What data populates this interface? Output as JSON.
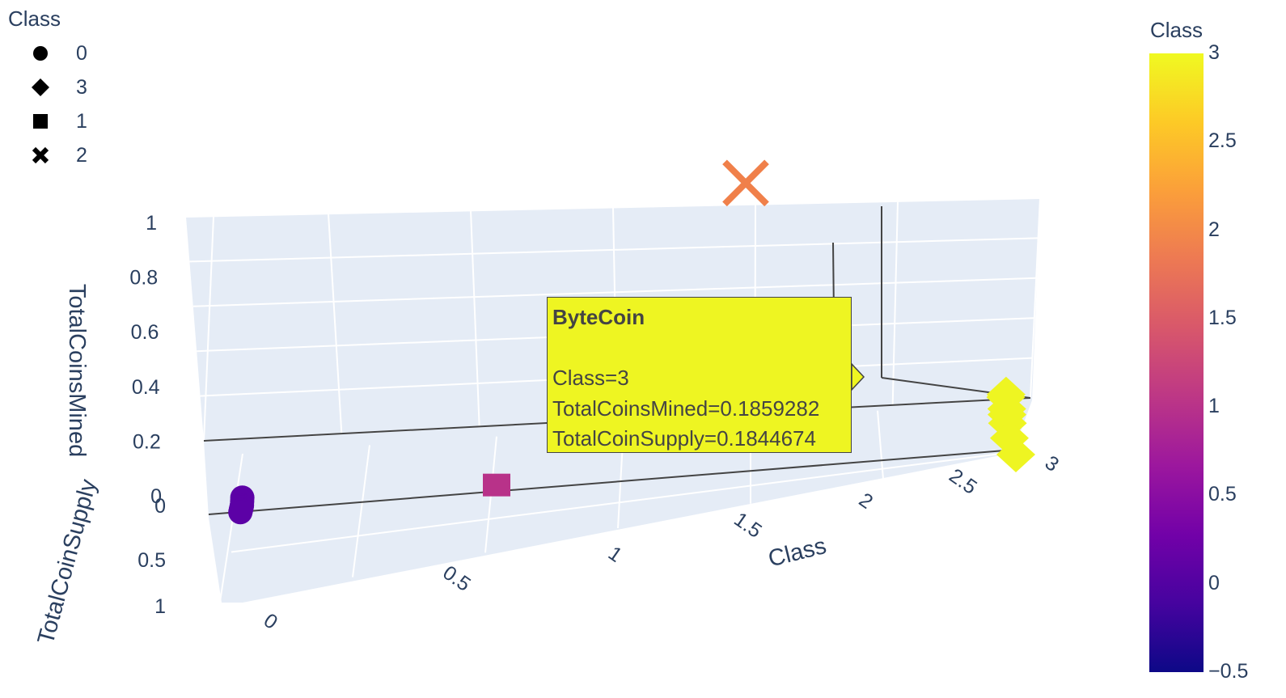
{
  "chart_data": {
    "type": "scatter3d",
    "legend": {
      "title": "Class",
      "items": [
        {
          "label": "0",
          "symbol": "circle"
        },
        {
          "label": "3",
          "symbol": "diamond"
        },
        {
          "label": "1",
          "symbol": "square"
        },
        {
          "label": "2",
          "symbol": "x"
        }
      ]
    },
    "colorbar": {
      "title": "Class",
      "ticks": [
        "3",
        "2.5",
        "2",
        "1.5",
        "1",
        "0.5",
        "0",
        "−0.5"
      ],
      "colors": [
        "#0d0887",
        "#46039f",
        "#7201a8",
        "#9c179e",
        "#bd3786",
        "#d8576b",
        "#ed7953",
        "#fb9f3a",
        "#fdca26",
        "#f0f921"
      ]
    },
    "axes": {
      "x": {
        "title": "Class",
        "ticks": [
          "0",
          "0.5",
          "1",
          "1.5",
          "2",
          "2.5",
          "3"
        ],
        "range": [
          0,
          3
        ]
      },
      "y": {
        "title": "TotalCoinSupply",
        "ticks": [
          "0",
          "0.5",
          "1"
        ],
        "range": [
          0,
          1
        ]
      },
      "z": {
        "title": "TotalCoinsMined",
        "ticks": [
          "0",
          "0.2",
          "0.4",
          "0.6",
          "0.8",
          "1"
        ],
        "range": [
          0,
          1
        ]
      }
    },
    "points": [
      {
        "class": 0,
        "x": 0,
        "y": 0.01,
        "z": 0.02
      },
      {
        "class": 0,
        "x": 0,
        "y": 0.02,
        "z": 0.01
      },
      {
        "class": 0,
        "x": 0,
        "y": 0.03,
        "z": 0.0
      },
      {
        "class": 0,
        "x": 0,
        "y": 0.04,
        "z": 0.0
      },
      {
        "class": 0,
        "x": 0,
        "y": 0.05,
        "z": 0.0
      },
      {
        "class": 0,
        "x": 0,
        "y": 0.07,
        "z": 0.0
      },
      {
        "class": 0,
        "x": 0,
        "y": 0.08,
        "z": 0.0
      },
      {
        "class": 0,
        "x": 0,
        "y": 0.1,
        "z": 0.0
      },
      {
        "class": 1,
        "x": 1,
        "y": 0.0,
        "z": 0.0
      },
      {
        "class": 2,
        "x": 2,
        "y": 0.0,
        "z": 1.0
      },
      {
        "class": 3,
        "x": 3,
        "y": 0.19,
        "z": 0.19
      },
      {
        "class": 3,
        "x": 3,
        "y": 0.22,
        "z": 0.2
      },
      {
        "class": 3,
        "x": 3,
        "y": 0.26,
        "z": 0.15
      },
      {
        "class": 3,
        "x": 3,
        "y": 0.27,
        "z": 0.13
      },
      {
        "class": 3,
        "x": 3,
        "y": 0.3,
        "z": 0.1
      },
      {
        "class": 3,
        "x": 3,
        "y": 0.45,
        "z": 0.05
      },
      {
        "class": 3,
        "x": 3,
        "y": 1.0,
        "z": 0.0
      }
    ],
    "tooltip": {
      "title": "ByteCoin",
      "lines": [
        "Class=3",
        "TotalCoinsMined=0.1859282",
        "TotalCoinSupply=0.1844674"
      ]
    }
  }
}
